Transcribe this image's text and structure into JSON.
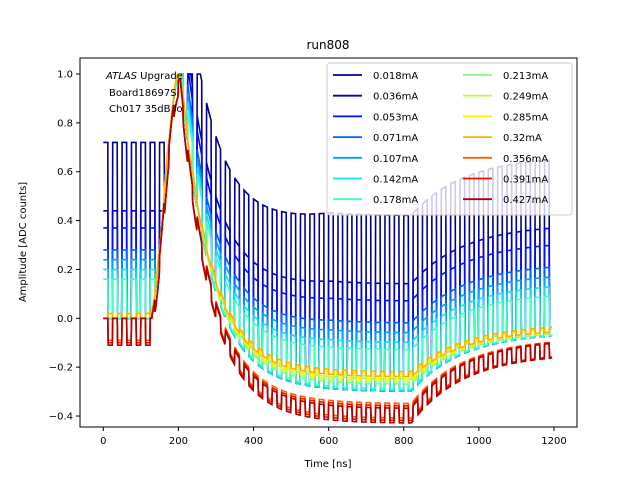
{
  "chart_data": {
    "type": "line",
    "title": "run808",
    "xlabel": "Time [ns]",
    "ylabel": "Amplitude [ADC counts]",
    "xlim": [
      -50,
      1260
    ],
    "ylim": [
      -0.45,
      1.06
    ],
    "xticks": [
      0,
      200,
      400,
      600,
      800,
      1000,
      1200
    ],
    "xtick_labels": [
      "0",
      "200",
      "400",
      "600",
      "800",
      "1000",
      "1200"
    ],
    "yticks": [
      -0.4,
      -0.2,
      0.0,
      0.2,
      0.4,
      0.6,
      0.8,
      1.0
    ],
    "ytick_labels": [
      "−0.4",
      "−0.2",
      "0.0",
      "0.2",
      "0.4",
      "0.6",
      "0.8",
      "1.0"
    ],
    "grid": false,
    "legend_position": "top-right",
    "legend_columns": 2,
    "annotations": [
      {
        "text_italic": "ATLAS",
        "text": " Upgrade"
      },
      {
        "text": "Board18697S"
      },
      {
        "text": "Ch017 35dB lo"
      }
    ],
    "series": [
      {
        "name": "0.018mA",
        "color": "#00008f",
        "pedestal": 0.72,
        "peak": 1.0,
        "undershoot": -0.3,
        "tail": 0.63
      },
      {
        "name": "0.036mA",
        "color": "#0000d0",
        "pedestal": 0.44,
        "peak": 1.0,
        "undershoot": -0.3,
        "tail": 0.42
      },
      {
        "name": "0.053mA",
        "color": "#0010ff",
        "pedestal": 0.37,
        "peak": 1.0,
        "undershoot": -0.3,
        "tail": 0.36
      },
      {
        "name": "0.071mA",
        "color": "#0060ff",
        "pedestal": 0.28,
        "peak": 1.0,
        "undershoot": -0.3,
        "tail": 0.27
      },
      {
        "name": "0.107mA",
        "color": "#00a0ff",
        "pedestal": 0.24,
        "peak": 1.0,
        "undershoot": -0.3,
        "tail": 0.23
      },
      {
        "name": "0.142mA",
        "color": "#10e0f0",
        "pedestal": 0.2,
        "peak": 1.0,
        "undershoot": -0.3,
        "tail": 0.2
      },
      {
        "name": "0.178mA",
        "color": "#40ffc0",
        "pedestal": 0.16,
        "peak": 1.0,
        "undershoot": -0.29,
        "tail": 0.17
      },
      {
        "name": "0.213mA",
        "color": "#80ff80",
        "pedestal": 0.0,
        "peak": 1.0,
        "undershoot": -0.27,
        "tail": 0.0
      },
      {
        "name": "0.249mA",
        "color": "#c0ff40",
        "pedestal": 0.0,
        "peak": 1.0,
        "undershoot": -0.26,
        "tail": 0.0
      },
      {
        "name": "0.285mA",
        "color": "#ffee00",
        "pedestal": 0.0,
        "peak": 1.0,
        "undershoot": -0.25,
        "tail": 0.0
      },
      {
        "name": "0.32mA",
        "color": "#ffb000",
        "pedestal": 0.02,
        "peak": 1.0,
        "undershoot": -0.24,
        "tail": 0.02
      },
      {
        "name": "0.356mA",
        "color": "#ff6000",
        "pedestal": -0.09,
        "peak": 1.0,
        "undershoot": -0.33,
        "tail": -0.09
      },
      {
        "name": "0.391mA",
        "color": "#f01000",
        "pedestal": -0.1,
        "peak": 1.0,
        "undershoot": -0.34,
        "tail": -0.1
      },
      {
        "name": "0.427mA",
        "color": "#b00000",
        "pedestal": -0.11,
        "peak": 1.0,
        "undershoot": -0.35,
        "tail": -0.11
      }
    ]
  }
}
